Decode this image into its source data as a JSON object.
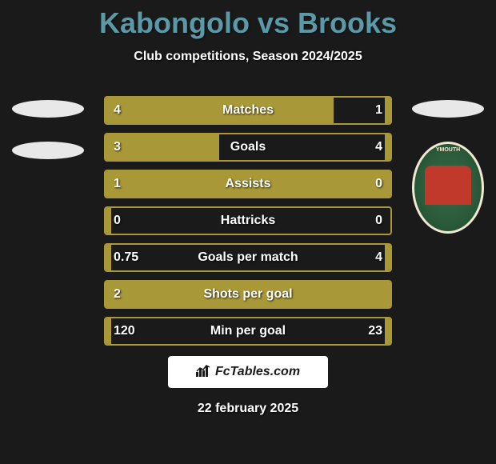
{
  "header": {
    "title": "Kabongolo vs Brooks",
    "subtitle": "Club competitions, Season 2024/2025",
    "title_color": "#5a9aa8"
  },
  "players": {
    "left": {
      "name": "Kabongolo"
    },
    "right": {
      "name": "Brooks",
      "badge_text": "YMOUTH"
    }
  },
  "stats": [
    {
      "label": "Matches",
      "left_value": "4",
      "right_value": "1",
      "left_pct": 80,
      "right_pct": 2
    },
    {
      "label": "Goals",
      "left_value": "3",
      "right_value": "4",
      "left_pct": 40,
      "right_pct": 2
    },
    {
      "label": "Assists",
      "left_value": "1",
      "right_value": "0",
      "left_pct": 100,
      "right_pct": 0
    },
    {
      "label": "Hattricks",
      "left_value": "0",
      "right_value": "0",
      "left_pct": 2,
      "right_pct": 0
    },
    {
      "label": "Goals per match",
      "left_value": "0.75",
      "right_value": "4",
      "left_pct": 2,
      "right_pct": 2
    },
    {
      "label": "Shots per goal",
      "left_value": "2",
      "right_value": "",
      "left_pct": 100,
      "right_pct": 0
    },
    {
      "label": "Min per goal",
      "left_value": "120",
      "right_value": "23",
      "left_pct": 2,
      "right_pct": 2
    }
  ],
  "colors": {
    "background": "#1a1a1a",
    "bar_fill": "#a89838",
    "bar_border": "#a89838",
    "text": "#ffffff"
  },
  "footer": {
    "logo_text": "FcTables.com",
    "date": "22 february 2025"
  }
}
